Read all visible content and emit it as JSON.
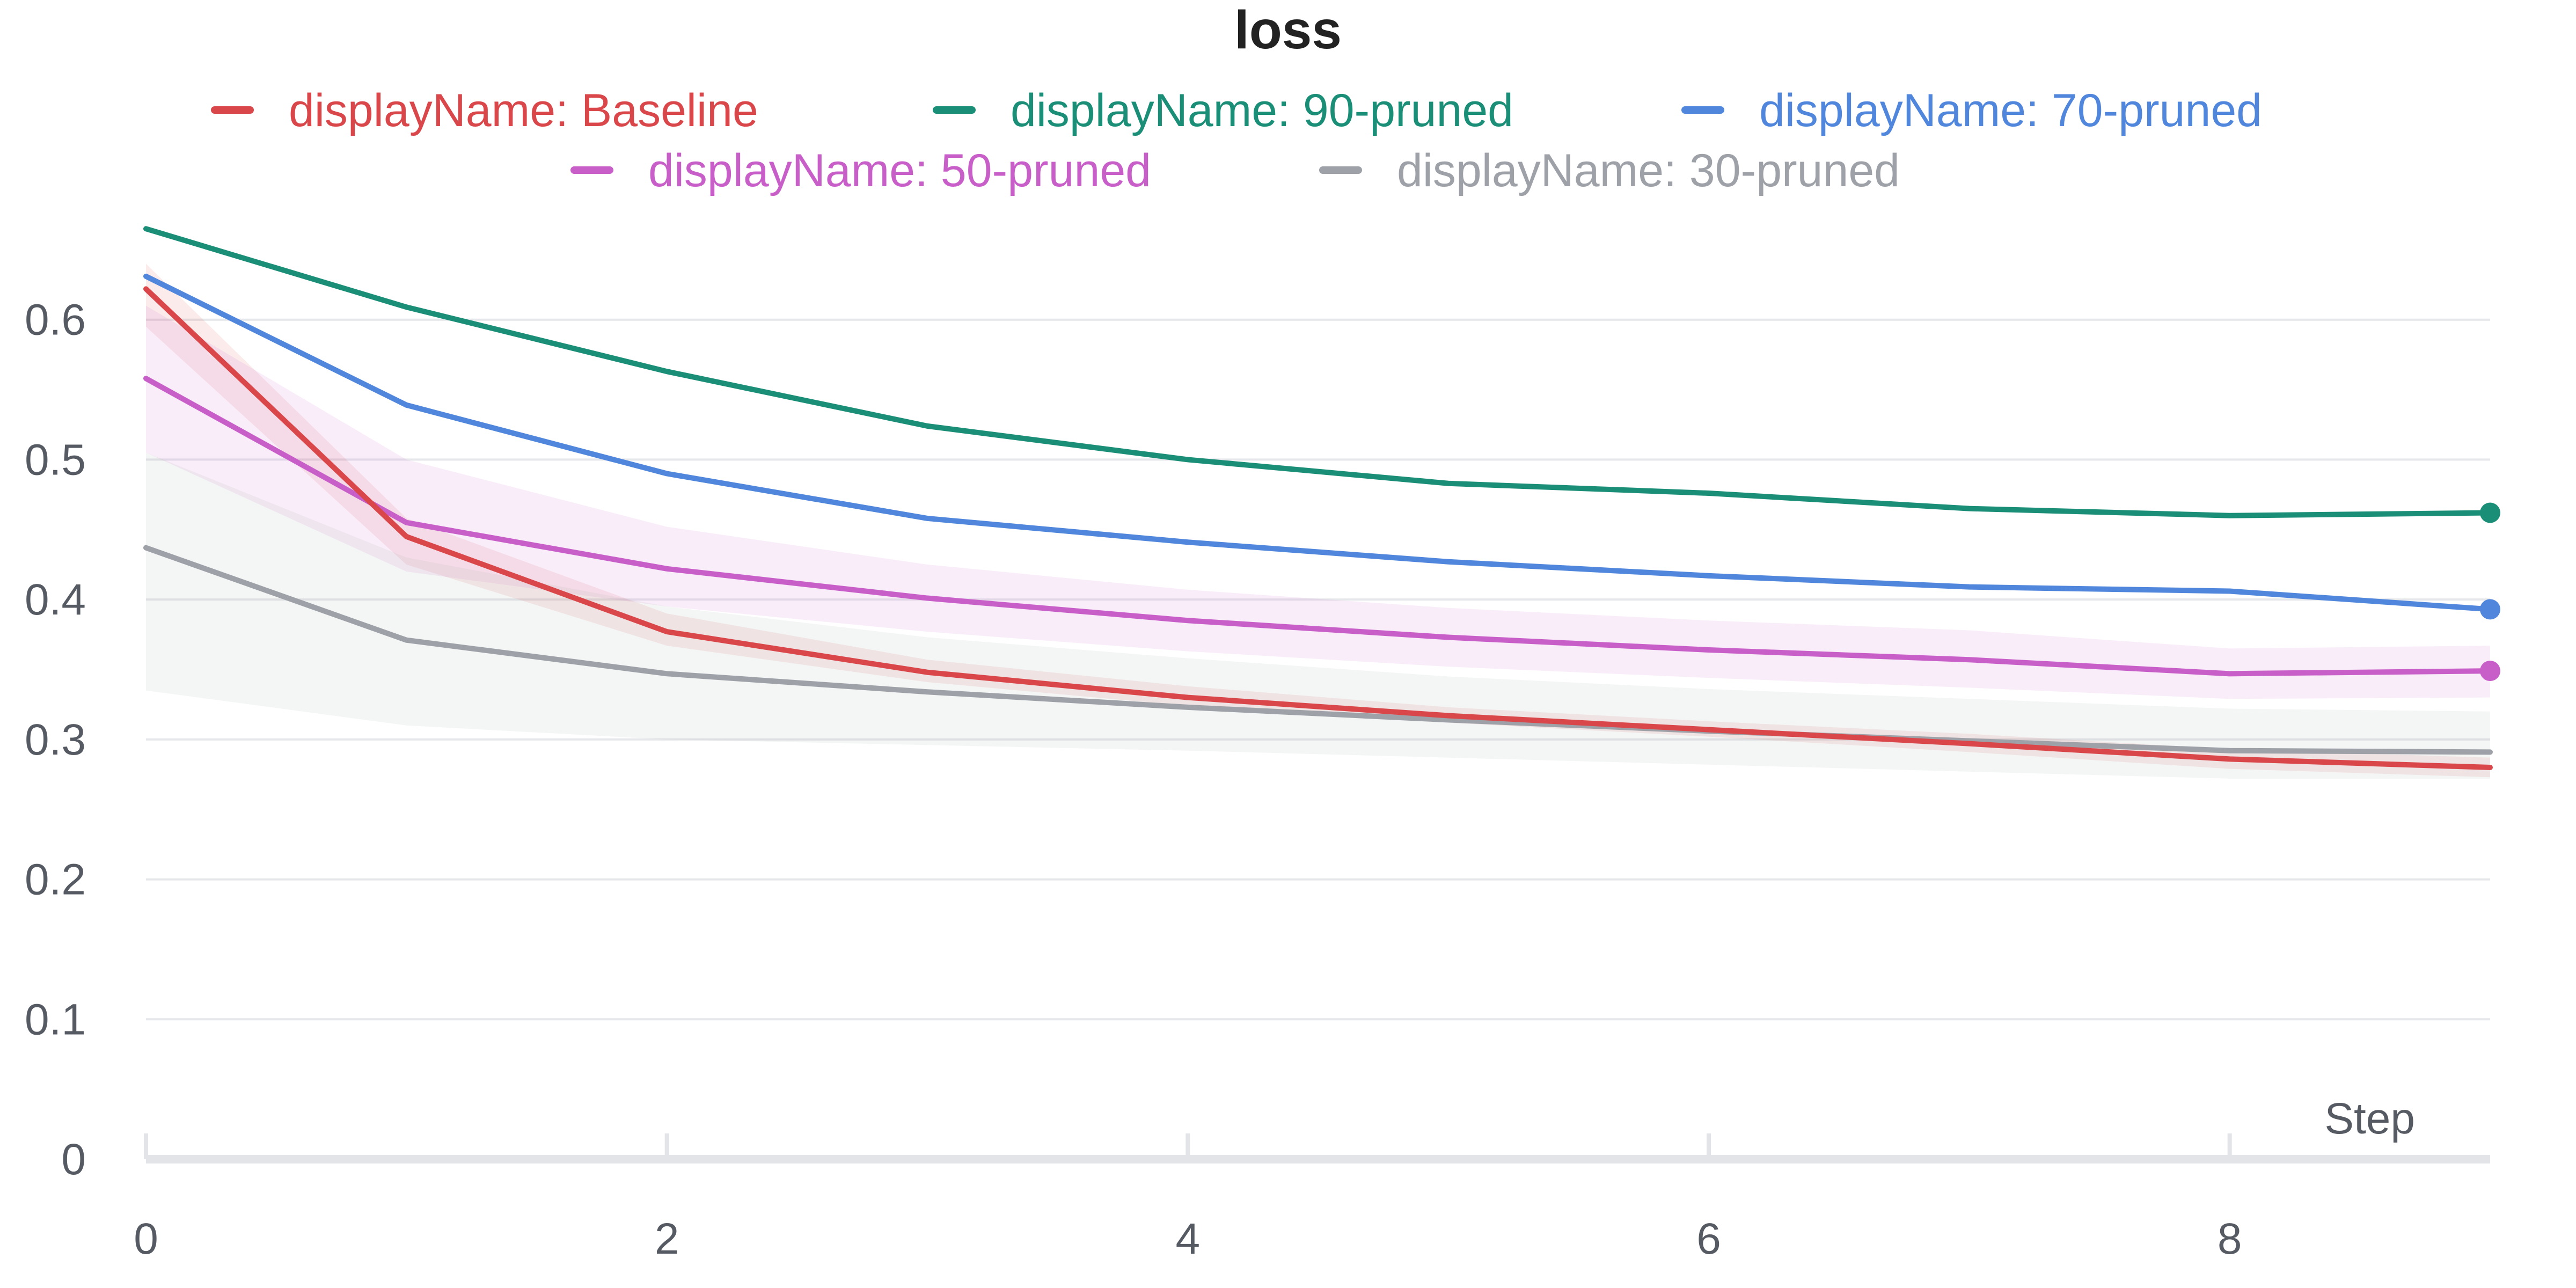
{
  "chart_data": {
    "type": "line",
    "title": "loss",
    "xlabel": "Step",
    "ylabel": "",
    "xlim": [
      0,
      9
    ],
    "ylim": [
      0,
      0.7
    ],
    "x_ticks": [
      0,
      2,
      4,
      6,
      8
    ],
    "y_ticks": [
      0,
      0.1,
      0.2,
      0.3,
      0.4,
      0.5,
      0.6
    ],
    "grid": true,
    "legend_position": "top",
    "x": [
      0,
      1,
      2,
      3,
      4,
      5,
      6,
      7,
      8,
      9
    ],
    "series": [
      {
        "name": "displayName: Baseline",
        "color": "#d9474b",
        "values": [
          0.622,
          0.445,
          0.377,
          0.348,
          0.33,
          0.317,
          0.307,
          0.297,
          0.286,
          0.28
        ],
        "band_lower": [
          0.595,
          0.425,
          0.367,
          0.341,
          0.324,
          0.312,
          0.302,
          0.291,
          0.279,
          0.273
        ],
        "band_upper": [
          0.64,
          0.458,
          0.39,
          0.357,
          0.338,
          0.323,
          0.313,
          0.304,
          0.293,
          0.287
        ],
        "end_marker": false
      },
      {
        "name": "displayName: 90-pruned",
        "color": "#1b8e78",
        "values": [
          0.665,
          0.609,
          0.563,
          0.524,
          0.5,
          0.483,
          0.476,
          0.465,
          0.46,
          0.462
        ],
        "end_marker": true
      },
      {
        "name": "displayName: 70-pruned",
        "color": "#5086dc",
        "values": [
          0.631,
          0.539,
          0.49,
          0.458,
          0.441,
          0.427,
          0.417,
          0.409,
          0.406,
          0.393
        ],
        "end_marker": true
      },
      {
        "name": "displayName: 50-pruned",
        "color": "#c85fc8",
        "values": [
          0.558,
          0.455,
          0.422,
          0.401,
          0.385,
          0.373,
          0.364,
          0.357,
          0.347,
          0.349
        ],
        "band_lower": [
          0.505,
          0.42,
          0.395,
          0.377,
          0.363,
          0.352,
          0.344,
          0.337,
          0.329,
          0.33
        ],
        "band_upper": [
          0.61,
          0.5,
          0.452,
          0.425,
          0.407,
          0.394,
          0.385,
          0.378,
          0.365,
          0.367
        ],
        "end_marker": true
      },
      {
        "name": "displayName: 30-pruned",
        "color": "#9ea2a8",
        "values": [
          0.437,
          0.371,
          0.347,
          0.334,
          0.323,
          0.314,
          0.306,
          0.299,
          0.292,
          0.291
        ],
        "band_lower": [
          0.335,
          0.31,
          0.3,
          0.296,
          0.292,
          0.287,
          0.282,
          0.277,
          0.272,
          0.272
        ],
        "band_upper": [
          0.505,
          0.43,
          0.395,
          0.373,
          0.358,
          0.345,
          0.336,
          0.329,
          0.322,
          0.32
        ],
        "end_marker": false
      }
    ]
  }
}
